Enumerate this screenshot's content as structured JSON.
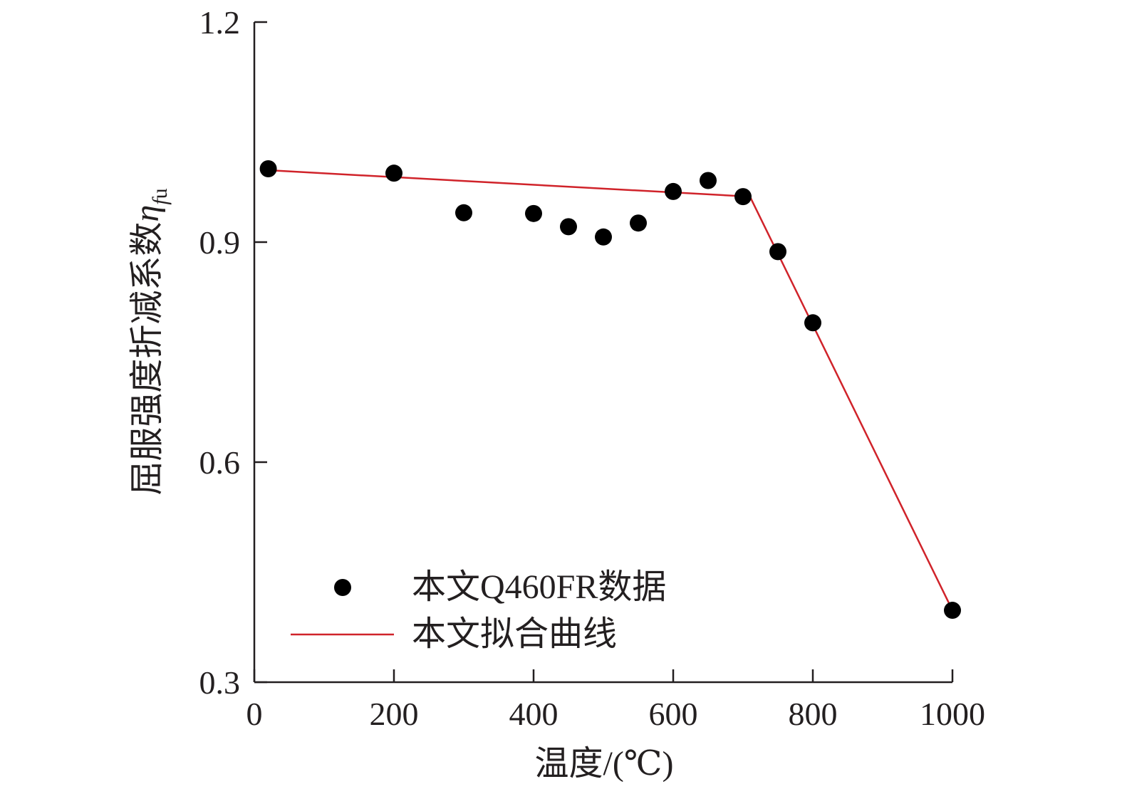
{
  "chart_data": {
    "type": "scatter",
    "xlabel": "温度/(℃)",
    "ylabel": "屈服强度折减系数",
    "ylabel_symbol": "η",
    "ylabel_subscript": "f",
    "ylabel_subscript2": "u",
    "xlim": [
      0,
      1000
    ],
    "ylim": [
      0.3,
      1.2
    ],
    "xticks": [
      0,
      200,
      400,
      600,
      800,
      1000
    ],
    "xtick_labels": [
      "0",
      "200",
      "400",
      "600",
      "800",
      "1000"
    ],
    "yticks": [
      0.3,
      0.6,
      0.9,
      1.2
    ],
    "ytick_labels": [
      "0.3",
      "0.6",
      "0.9",
      "1.2"
    ],
    "grid": false,
    "legend_position": "bottom-left",
    "series": [
      {
        "name": "本文Q460FR数据",
        "kind": "scatter",
        "color": "#000000",
        "x": [
          20,
          200,
          300,
          400,
          450,
          500,
          550,
          600,
          650,
          700,
          750,
          800,
          1000
        ],
        "y": [
          1.0,
          0.994,
          0.94,
          0.939,
          0.921,
          0.907,
          0.926,
          0.969,
          0.984,
          0.962,
          0.887,
          0.79,
          0.398
        ]
      },
      {
        "name": "本文拟合曲线",
        "kind": "line",
        "color": "#d0232a",
        "x": [
          20,
          710,
          1000
        ],
        "y": [
          0.998,
          0.962,
          0.398
        ]
      }
    ]
  }
}
